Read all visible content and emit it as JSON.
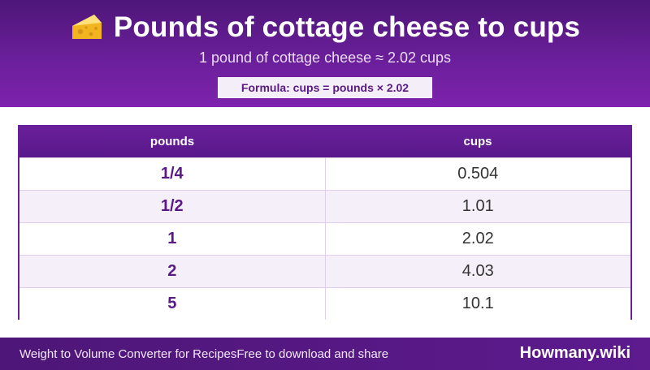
{
  "header": {
    "icon": "cheese-icon",
    "title": "Pounds of cottage cheese to cups",
    "subtitle": "1 pound of cottage cheese ≈ 2.02 cups",
    "formula": "Formula: cups = pounds × 2.02"
  },
  "table": {
    "headers": [
      "pounds",
      "cups"
    ],
    "rows": [
      [
        "1/4",
        "0.504"
      ],
      [
        "1/2",
        "1.01"
      ],
      [
        "1",
        "2.02"
      ],
      [
        "2",
        "4.03"
      ],
      [
        "5",
        "10.1"
      ]
    ]
  },
  "footer": {
    "left_text": "Weight to Volume Converter for Recipes",
    "middle_text": "Free to download and share",
    "brand": "Howmany.wiki"
  },
  "colors": {
    "primary": "#6a1f9a",
    "header_dark": "#4e1678",
    "row_alt": "#f4eff8",
    "pounds_text": "#5a1a86"
  }
}
